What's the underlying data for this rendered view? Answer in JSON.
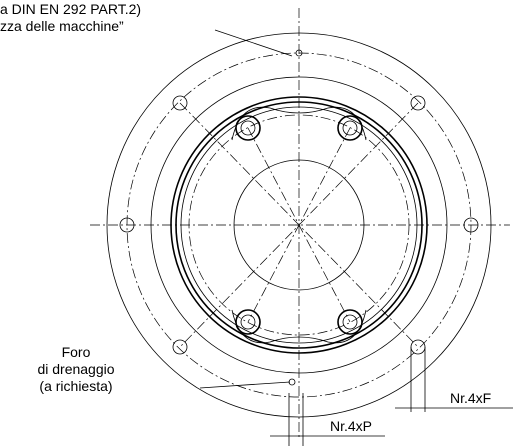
{
  "note_top": {
    "line1": "a DIN EN 292 PART.2)",
    "line2": "zza delle macchine”"
  },
  "drain_label": {
    "line1": "Foro",
    "line2": "di drenaggio",
    "line3": "(a richiesta)"
  },
  "dim_f": "Nr.4xF",
  "dim_p": "Nr.4xP"
}
